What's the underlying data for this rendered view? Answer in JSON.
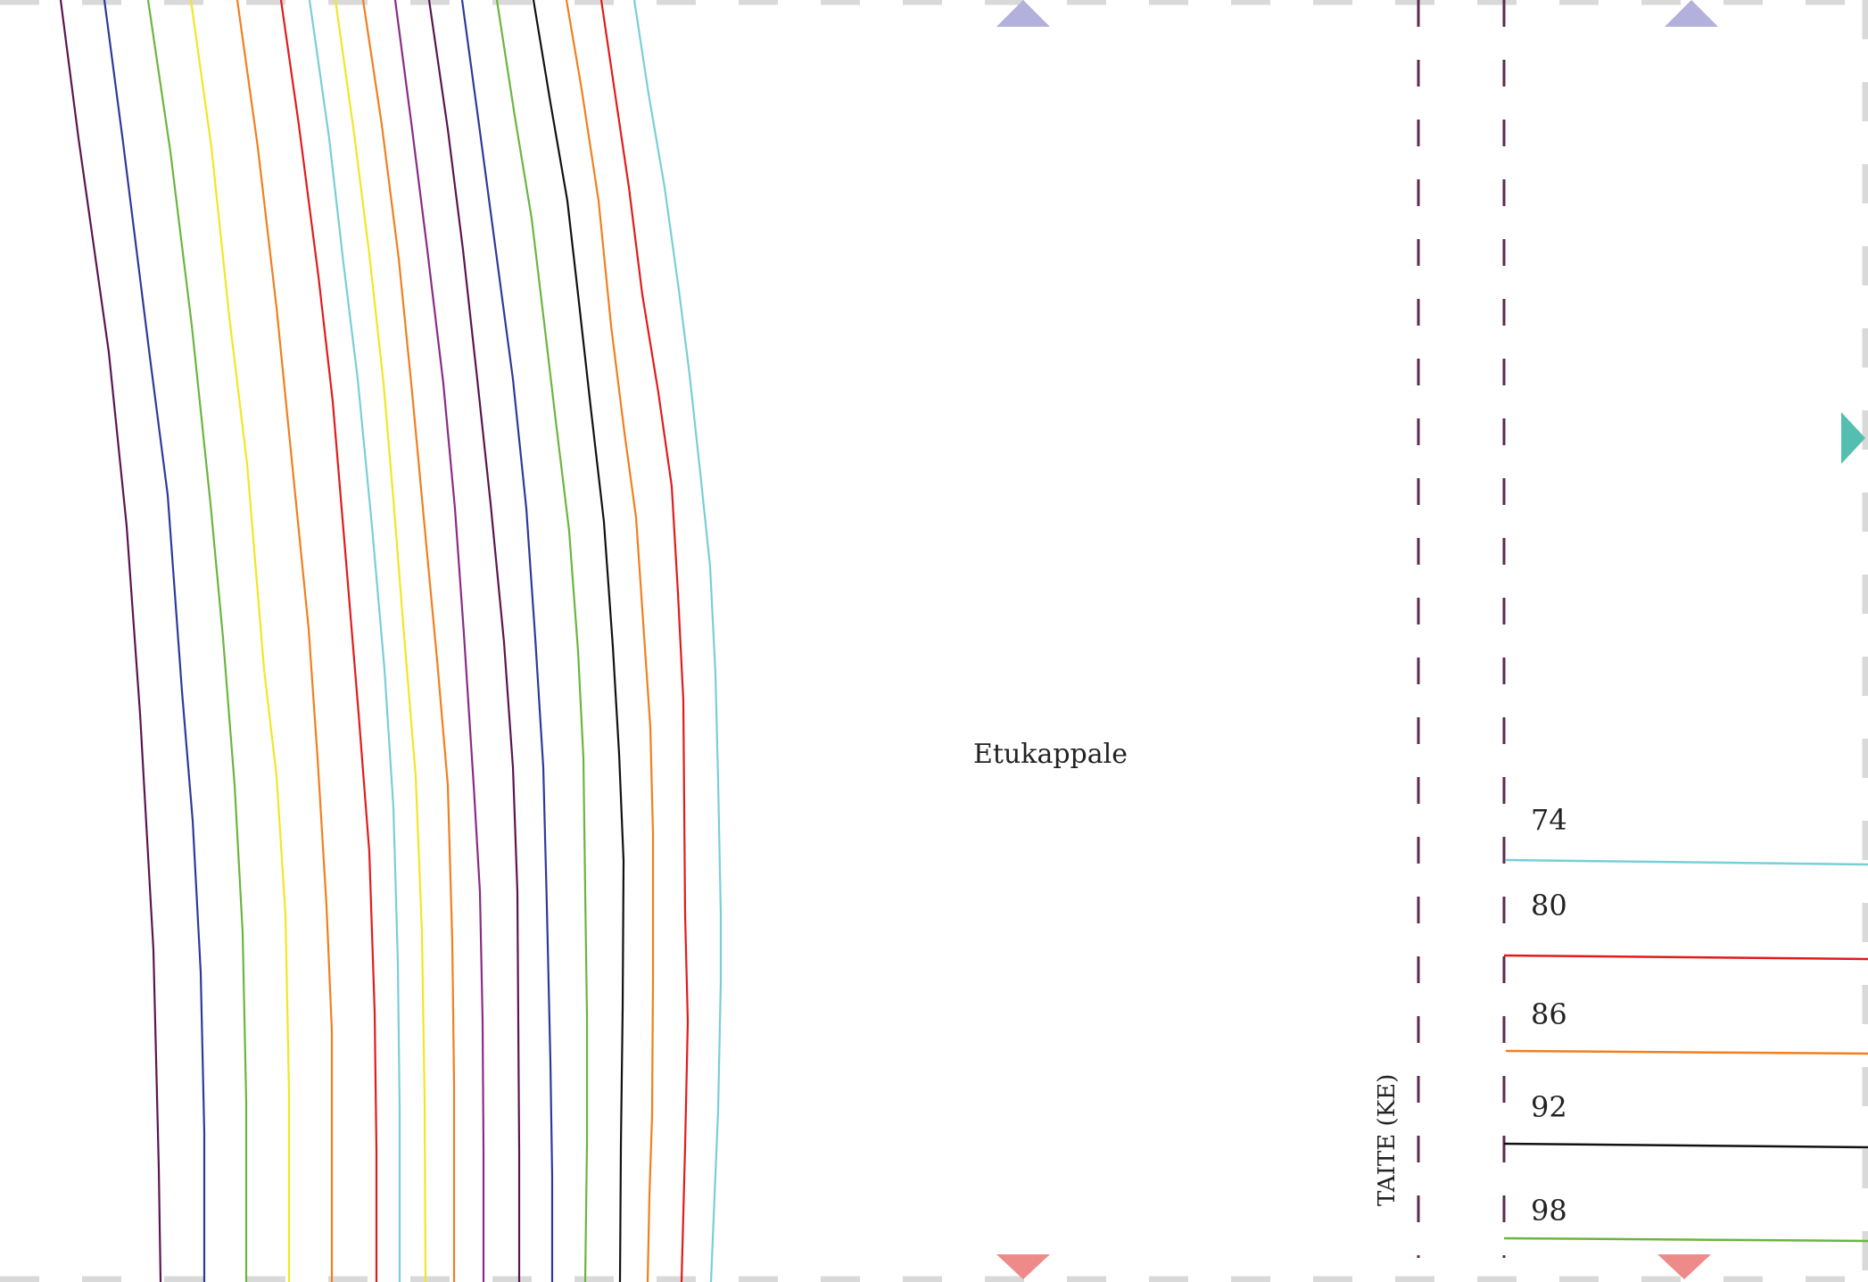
{
  "piece": {
    "name": "Etukappale",
    "fold_label": "TAITE (KE)"
  },
  "sizes": [
    {
      "label": "74",
      "color": "#77cfd8"
    },
    {
      "label": "80",
      "color": "#e31a1c"
    },
    {
      "label": "86",
      "color": "#f17f1e"
    },
    {
      "label": "92",
      "color": "#111111"
    },
    {
      "label": "98",
      "color": "#6bb53f"
    }
  ],
  "colors": {
    "tile_border": "#d9d9d9",
    "fold_line": "#5c2a50",
    "marker_top": "#b3b0dc",
    "marker_bottom": "#ee8a89",
    "marker_right": "#54bfb0",
    "curve_palette": [
      "#5c1450",
      "#2d3a9c",
      "#6bb53f",
      "#f2e624",
      "#f17f1e",
      "#e31a1c",
      "#77cfd8",
      "#8a2b86",
      "#111111"
    ]
  },
  "icons": {
    "top_marker": "triangle-up-icon",
    "bottom_marker": "triangle-down-icon",
    "right_marker": "triangle-right-icon"
  }
}
